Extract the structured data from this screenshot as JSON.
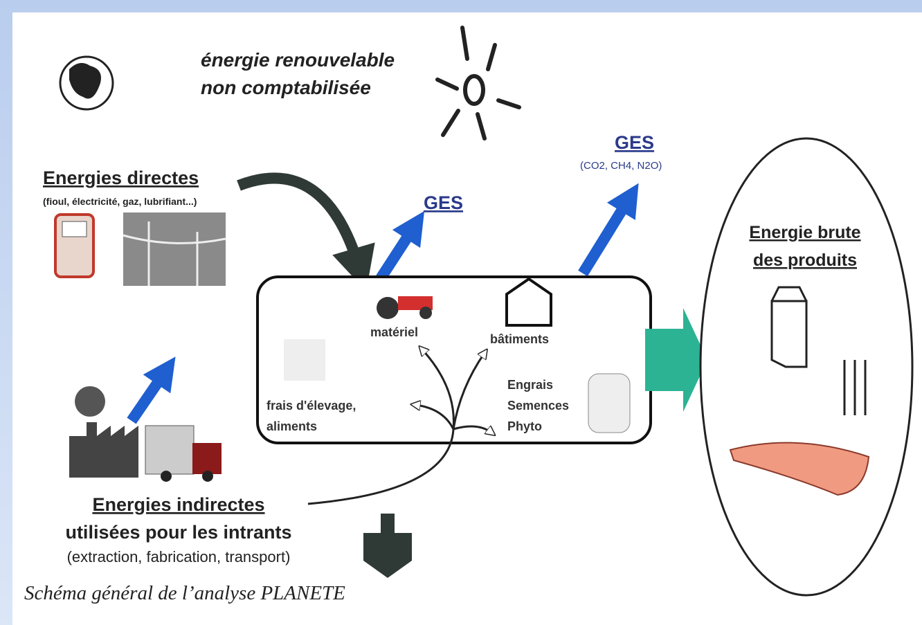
{
  "header": {
    "renewable": [
      "énergie renouvelable",
      "non comptabilisée"
    ],
    "caption": "Schéma général de l’analyse PLANETE"
  },
  "direct": {
    "title": "Energies directes",
    "detail": "(fioul, électricité, gaz, lubrifiant...)"
  },
  "ges": {
    "middle": "GES",
    "right": "GES",
    "right_detail": "(CO2, CH4, N2O)"
  },
  "farm": {
    "materiel": "matériel",
    "batiments": "bâtiments",
    "elevage": [
      "frais d'élevage,",
      "aliments"
    ],
    "intrants": [
      "Engrais",
      "Semences",
      "Phyto"
    ]
  },
  "products": {
    "title": [
      "Energie brute",
      "des produits"
    ]
  },
  "indirect": {
    "title": "Energies indirectes",
    "subtitle": "utilisées pour les intrants",
    "detail": "(extraction, fabrication, transport)"
  }
}
